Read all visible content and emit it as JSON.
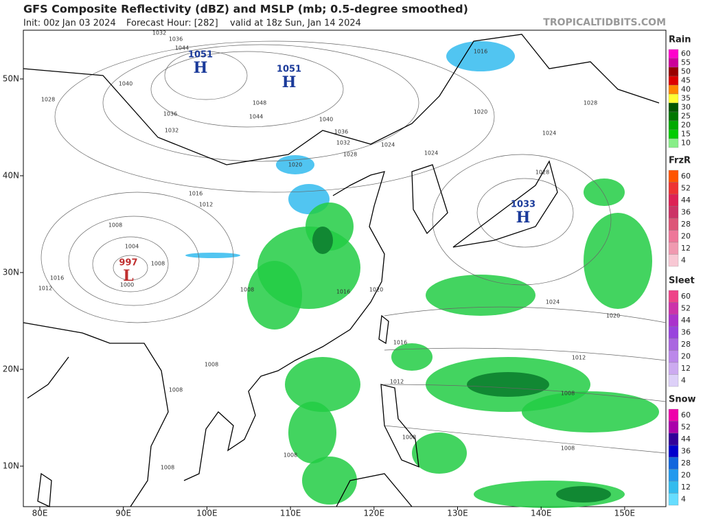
{
  "header": {
    "title": "GFS Composite Reflectivity (dBZ) and MSLP (mb; 0.5-degree smoothed)",
    "init": "Init: 00z Jan 03 2024",
    "forecast_hour": "Forecast Hour: [282]",
    "valid": "valid at 18z Sun, Jan 14 2024",
    "site": "TROPICALTIDBITS.COM"
  },
  "map": {
    "lon_ticks": [
      {
        "value": 80,
        "label": "80E"
      },
      {
        "value": 90,
        "label": "90E"
      },
      {
        "value": 100,
        "label": "100E"
      },
      {
        "value": 110,
        "label": "110E"
      },
      {
        "value": 120,
        "label": "120E"
      },
      {
        "value": 130,
        "label": "130E"
      },
      {
        "value": 140,
        "label": "140E"
      },
      {
        "value": 150,
        "label": "150E"
      }
    ],
    "lat_ticks": [
      {
        "value": 50,
        "label": "50N"
      },
      {
        "value": 40,
        "label": "40N"
      },
      {
        "value": 30,
        "label": "30N"
      },
      {
        "value": 20,
        "label": "20N"
      },
      {
        "value": 10,
        "label": "10N"
      }
    ],
    "centers": [
      {
        "type": "H",
        "pressure": "1051"
      },
      {
        "type": "H",
        "pressure": "1051"
      },
      {
        "type": "L",
        "pressure": "997"
      },
      {
        "type": "H",
        "pressure": "1033"
      }
    ],
    "isobar_labels": [
      "1032",
      "1036",
      "1044",
      "1040",
      "1028",
      "1036",
      "1032",
      "1048",
      "1044",
      "1040",
      "1036",
      "1032",
      "1028",
      "1024",
      "1020",
      "1016",
      "1012",
      "1008",
      "1004",
      "1000",
      "1008",
      "1016",
      "1012",
      "1008",
      "1016",
      "1020",
      "1024",
      "1028",
      "1020",
      "1024",
      "1028",
      "1016",
      "1024",
      "1020",
      "1016",
      "1012",
      "1012",
      "1008",
      "1008",
      "1008",
      "1008",
      "1008",
      "1008",
      "1008"
    ]
  },
  "legend": [
    {
      "name": "Rain",
      "ticks": [
        "60",
        "55",
        "50",
        "45",
        "40",
        "35",
        "30",
        "25",
        "20",
        "15",
        "10"
      ]
    },
    {
      "name": "FrzR",
      "ticks": [
        "60",
        "52",
        "44",
        "36",
        "28",
        "20",
        "12",
        "4"
      ]
    },
    {
      "name": "Sleet",
      "ticks": [
        "60",
        "52",
        "44",
        "36",
        "28",
        "20",
        "12",
        "4"
      ]
    },
    {
      "name": "Snow",
      "ticks": [
        "60",
        "52",
        "44",
        "36",
        "28",
        "20",
        "12",
        "4"
      ]
    }
  ]
}
